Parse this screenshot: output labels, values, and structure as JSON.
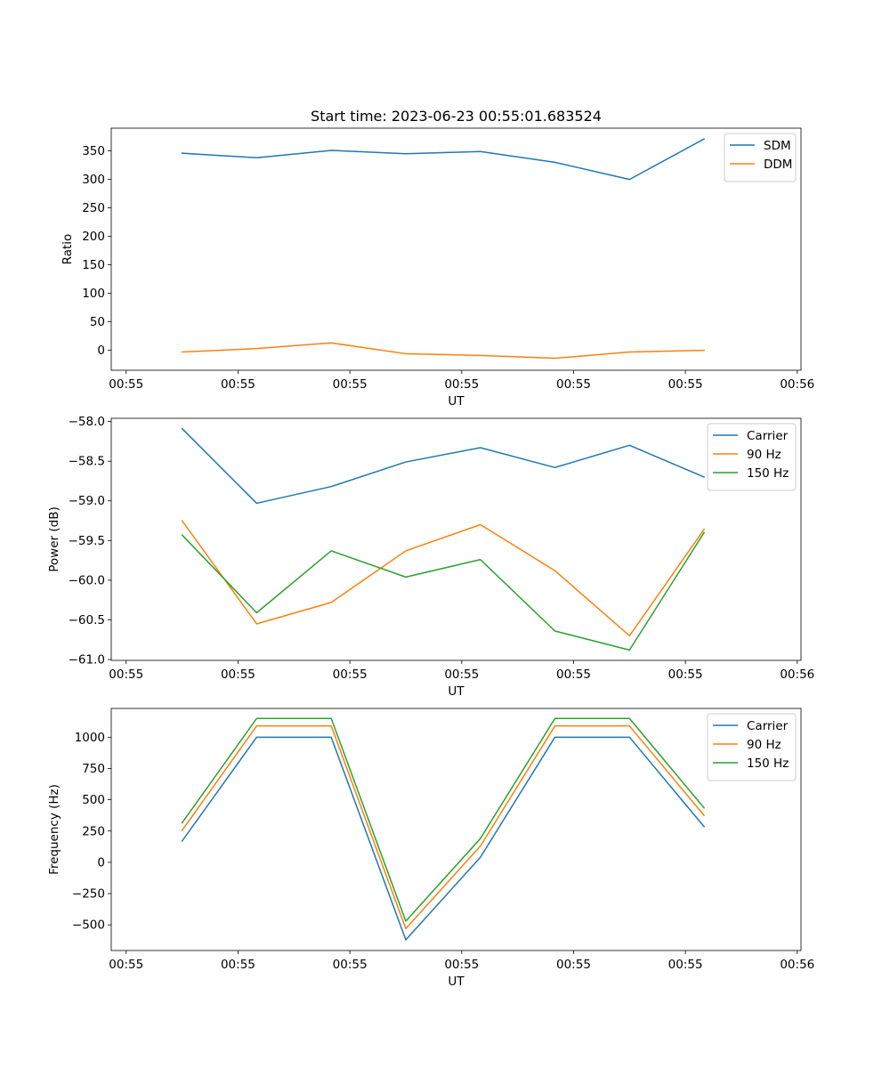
{
  "figure": {
    "title": "Start time: 2023-06-23 00:55:01.683524"
  },
  "chart_data": [
    {
      "type": "line",
      "title": "Start time: 2023-06-23 00:55:01.683524",
      "xlabel": "UT",
      "ylabel": "Ratio",
      "x": [
        1,
        2,
        3,
        4,
        5,
        6,
        7,
        8
      ],
      "x_tick_values": [
        0.25,
        1.75,
        3.25,
        4.75,
        6.25,
        7.75,
        9.25
      ],
      "x_tick_labels": [
        "00:55",
        "00:55",
        "00:55",
        "00:55",
        "00:55",
        "00:55",
        "00:56"
      ],
      "xlim": [
        0.05,
        9.3
      ],
      "ylim": [
        -35,
        390
      ],
      "y_ticks": [
        0,
        50,
        100,
        150,
        200,
        250,
        300,
        350
      ],
      "grid": false,
      "legend_position": "upper right",
      "series": [
        {
          "name": "SDM",
          "color": "#1f77b4",
          "values": [
            346,
            338,
            351,
            345,
            349,
            330,
            300,
            371
          ]
        },
        {
          "name": "DDM",
          "color": "#ff7f0e",
          "values": [
            -3,
            3,
            13,
            -6,
            -9,
            -14,
            -3,
            0
          ]
        }
      ]
    },
    {
      "type": "line",
      "xlabel": "UT",
      "ylabel": "Power (dB)",
      "x": [
        1,
        2,
        3,
        4,
        5,
        6,
        7,
        8
      ],
      "x_tick_values": [
        0.25,
        1.75,
        3.25,
        4.75,
        6.25,
        7.75,
        9.25
      ],
      "x_tick_labels": [
        "00:55",
        "00:55",
        "00:55",
        "00:55",
        "00:55",
        "00:55",
        "00:56"
      ],
      "xlim": [
        0.05,
        9.3
      ],
      "ylim": [
        -61.01,
        -57.96
      ],
      "y_ticks": [
        -61.0,
        -60.5,
        -60.0,
        -59.5,
        -59.0,
        -58.5,
        -58.0
      ],
      "y_tick_labels": [
        "−61.0",
        "−60.5",
        "−60.0",
        "−59.5",
        "−59.0",
        "−58.5",
        "−58.0"
      ],
      "grid": false,
      "legend_position": "upper right",
      "series": [
        {
          "name": "Carrier",
          "color": "#1f77b4",
          "values": [
            -58.09,
            -59.03,
            -58.82,
            -58.51,
            -58.33,
            -58.58,
            -58.3,
            -58.7
          ]
        },
        {
          "name": "90 Hz",
          "color": "#ff7f0e",
          "values": [
            -59.25,
            -60.55,
            -60.28,
            -59.63,
            -59.3,
            -59.88,
            -60.7,
            -59.36
          ]
        },
        {
          "name": "150 Hz",
          "color": "#2ca02c",
          "values": [
            -59.43,
            -60.41,
            -59.63,
            -59.96,
            -59.74,
            -60.64,
            -60.88,
            -59.4
          ]
        }
      ]
    },
    {
      "type": "line",
      "xlabel": "UT",
      "ylabel": "Frequency (Hz)",
      "x": [
        1,
        2,
        3,
        4,
        5,
        6,
        7,
        8
      ],
      "x_tick_values": [
        0.25,
        1.75,
        3.25,
        4.75,
        6.25,
        7.75,
        9.25
      ],
      "x_tick_labels": [
        "00:55",
        "00:55",
        "00:55",
        "00:55",
        "00:55",
        "00:55",
        "00:56"
      ],
      "xlim": [
        0.05,
        9.3
      ],
      "ylim": [
        -705,
        1230
      ],
      "y_ticks": [
        -500,
        -250,
        0,
        250,
        500,
        750,
        1000
      ],
      "y_tick_labels": [
        "−500",
        "−250",
        "0",
        "250",
        "500",
        "750",
        "1000"
      ],
      "grid": false,
      "legend_position": "upper right",
      "series": [
        {
          "name": "Carrier",
          "color": "#1f77b4",
          "values": [
            170,
            1000,
            1000,
            -620,
            40,
            1000,
            1000,
            285
          ]
        },
        {
          "name": "90 Hz",
          "color": "#ff7f0e",
          "values": [
            255,
            1090,
            1090,
            -530,
            130,
            1090,
            1090,
            375
          ]
        },
        {
          "name": "150 Hz",
          "color": "#2ca02c",
          "values": [
            315,
            1150,
            1150,
            -470,
            190,
            1150,
            1150,
            435
          ]
        }
      ]
    }
  ]
}
